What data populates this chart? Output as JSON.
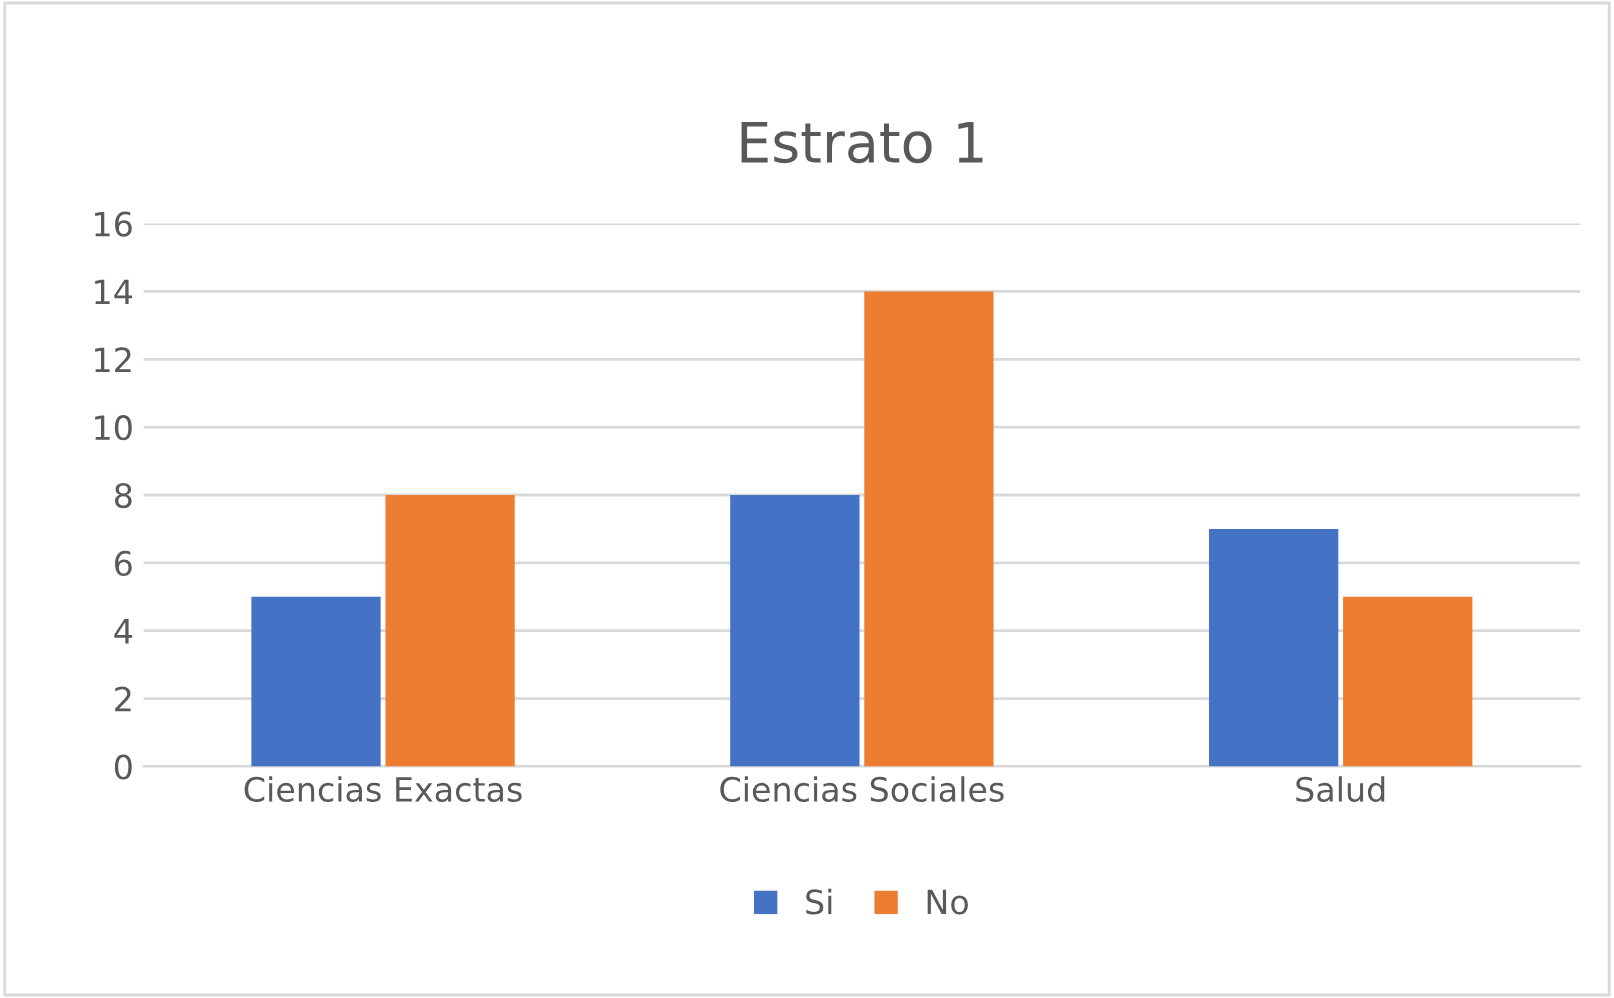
{
  "chart_data": {
    "type": "bar",
    "title": "Estrato 1",
    "categories": [
      "Ciencias Exactas",
      "Ciencias Sociales",
      "Salud"
    ],
    "series": [
      {
        "name": "Si",
        "color": "#4472c4",
        "values": [
          5,
          8,
          7
        ]
      },
      {
        "name": "No",
        "color": "#ed7d31",
        "values": [
          8,
          14,
          5
        ]
      }
    ],
    "ylim": [
      0,
      16
    ],
    "yticks": [
      0,
      2,
      4,
      6,
      8,
      10,
      12,
      14,
      16
    ],
    "grid": "y",
    "legend": "bottom"
  }
}
